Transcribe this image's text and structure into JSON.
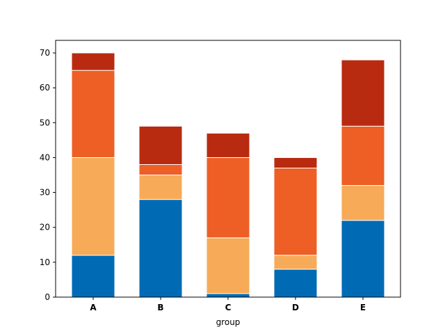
{
  "chart_data": {
    "type": "stacked-bar",
    "x_label": "group",
    "categories": [
      "A",
      "B",
      "C",
      "D",
      "E"
    ],
    "series": [
      {
        "color": "#006bb4",
        "values": [
          12,
          28,
          1,
          8,
          22
        ]
      },
      {
        "color": "#f7aa58",
        "values": [
          28,
          7,
          16,
          4,
          10
        ]
      },
      {
        "color": "#ed5f25",
        "values": [
          25,
          3,
          23,
          25,
          17
        ]
      },
      {
        "color": "#b82b10",
        "values": [
          5,
          11,
          7,
          3,
          19
        ]
      }
    ],
    "ylim": [
      0,
      73.6
    ],
    "yticks": [
      0,
      10,
      20,
      30,
      40,
      50,
      60,
      70
    ],
    "grid": false
  }
}
